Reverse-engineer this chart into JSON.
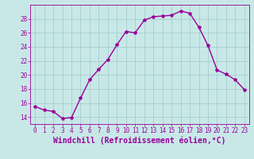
{
  "x": [
    0,
    1,
    2,
    3,
    4,
    5,
    6,
    7,
    8,
    9,
    10,
    11,
    12,
    13,
    14,
    15,
    16,
    17,
    18,
    19,
    20,
    21,
    22,
    23
  ],
  "y": [
    15.5,
    15.0,
    14.8,
    13.8,
    13.9,
    16.7,
    19.3,
    20.8,
    22.2,
    24.3,
    26.2,
    26.0,
    27.8,
    28.3,
    28.4,
    28.5,
    29.1,
    28.8,
    26.8,
    24.2,
    20.7,
    20.1,
    19.3,
    17.9
  ],
  "line_color": "#990099",
  "marker": "*",
  "marker_size": 3,
  "xlabel": "Windchill (Refroidissement éolien,°C)",
  "xlabel_fontsize": 7,
  "xlim": [
    -0.5,
    23.5
  ],
  "ylim": [
    13,
    30
  ],
  "yticks": [
    14,
    16,
    18,
    20,
    22,
    24,
    26,
    28
  ],
  "xticks": [
    0,
    1,
    2,
    3,
    4,
    5,
    6,
    7,
    8,
    9,
    10,
    11,
    12,
    13,
    14,
    15,
    16,
    17,
    18,
    19,
    20,
    21,
    22,
    23
  ],
  "xtick_labels": [
    "0",
    "1",
    "2",
    "3",
    "4",
    "5",
    "6",
    "7",
    "8",
    "9",
    "10",
    "11",
    "12",
    "13",
    "14",
    "15",
    "16",
    "17",
    "18",
    "19",
    "20",
    "21",
    "22",
    "23"
  ],
  "tick_fontsize": 5.5,
  "bg_color": "#c8e8e8",
  "grid_color": "#a0c8c8",
  "line_width": 1.0
}
